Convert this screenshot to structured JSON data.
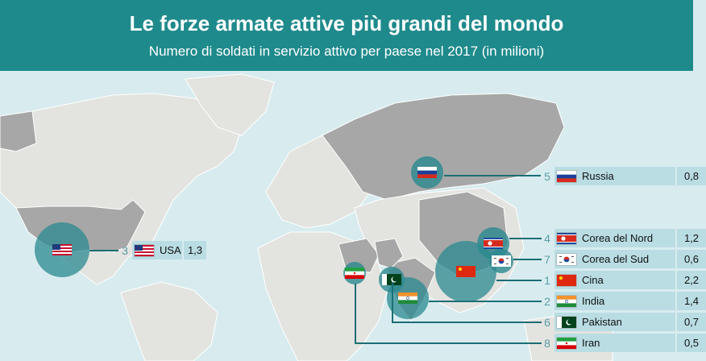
{
  "header": {
    "title": "Le forze armate attive più grandi del mondo",
    "subtitle": "Numero di soldati in servizio attivo per paese nel 2017 (in milioni)"
  },
  "rows": [
    {
      "rank": "5",
      "name": "Russia",
      "value": "0,8",
      "flag": "russia-flag-icon"
    },
    {
      "rank": "3",
      "name": "USA",
      "value": "1,3",
      "flag": "usa-flag-icon"
    },
    {
      "rank": "4",
      "name": "Corea del Nord",
      "value": "1,2",
      "flag": "north-korea-flag-icon"
    },
    {
      "rank": "7",
      "name": "Corea del Sud",
      "value": "0,6",
      "flag": "south-korea-flag-icon"
    },
    {
      "rank": "1",
      "name": "Cina",
      "value": "2,2",
      "flag": "china-flag-icon"
    },
    {
      "rank": "2",
      "name": "India",
      "value": "1,4",
      "flag": "india-flag-icon"
    },
    {
      "rank": "6",
      "name": "Pakistan",
      "value": "0,7",
      "flag": "pakistan-flag-icon"
    },
    {
      "rank": "8",
      "name": "Iran",
      "value": "0,5",
      "flag": "iran-flag-icon"
    }
  ],
  "colors": {
    "header": "#1f8a8c",
    "sea": "#d8ecef",
    "land": "#e3e3e0",
    "highlight": "#a7a7a7",
    "bubble": "#2a8a90",
    "label_bg": "#b9dde3"
  }
}
